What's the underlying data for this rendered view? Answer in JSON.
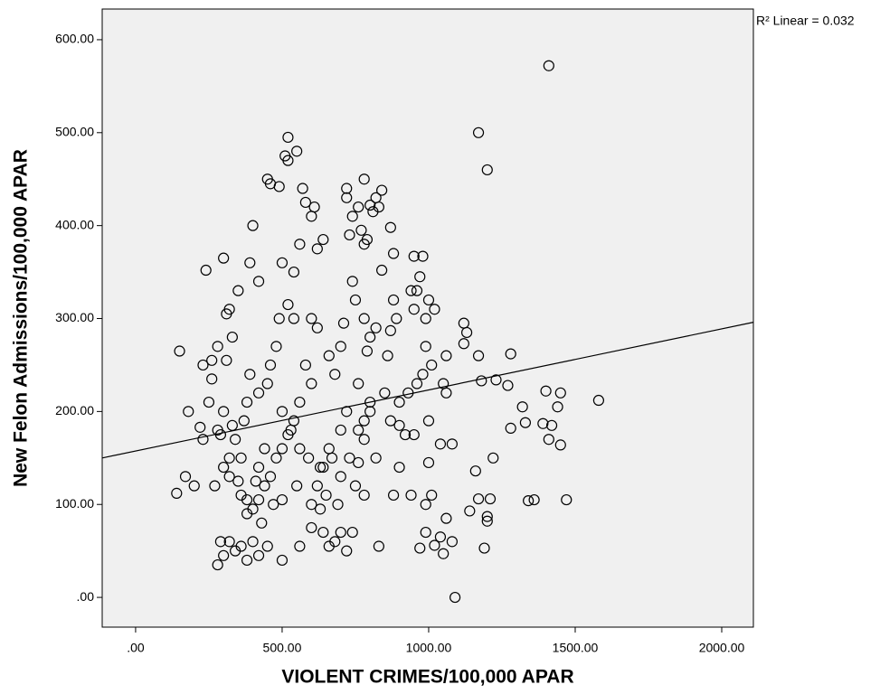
{
  "chart_data": {
    "type": "scatter",
    "y_label": "New Felon Admissions/100,000 APAR",
    "x_label": "VIOLENT CRIMES/100,000 APAR",
    "annotation": "R² Linear = 0.032",
    "xlim": [
      -114,
      2108
    ],
    "ylim": [
      -32,
      633
    ],
    "xticks": [
      {
        "value": 0,
        "label": ".00"
      },
      {
        "value": 500,
        "label": "500.00"
      },
      {
        "value": 1000,
        "label": "1000.00"
      },
      {
        "value": 1500,
        "label": "1500.00"
      },
      {
        "value": 2000,
        "label": "2000.00"
      }
    ],
    "yticks": [
      {
        "value": 0,
        "label": ".00"
      },
      {
        "value": 100,
        "label": "100.00"
      },
      {
        "value": 200,
        "label": "200.00"
      },
      {
        "value": 300,
        "label": "300.00"
      },
      {
        "value": 400,
        "label": "400.00"
      },
      {
        "value": 500,
        "label": "500.00"
      },
      {
        "value": 600,
        "label": "600.00"
      }
    ],
    "fit_line": {
      "x": [
        -114,
        2108
      ],
      "y": [
        150,
        296
      ]
    },
    "x": [
      1410,
      1170,
      1200,
      1580,
      1400,
      1450,
      1440,
      1420,
      1390,
      1410,
      1450,
      1470,
      1360,
      1340,
      1330,
      1320,
      1280,
      1270,
      1280,
      1230,
      1220,
      1210,
      1200,
      1190,
      1200,
      1160,
      1170,
      1140,
      1170,
      1180,
      1120,
      1130,
      1120,
      1080,
      1050,
      1060,
      1060,
      1040,
      1060,
      1050,
      1080,
      1020,
      1090,
      1000,
      990,
      990,
      980,
      950,
      970,
      960,
      940,
      950,
      1000,
      1020,
      1010,
      980,
      960,
      930,
      920,
      950,
      990,
      990,
      970,
      1000,
      900,
      890,
      880,
      870,
      860,
      870,
      880,
      840,
      830,
      820,
      810,
      800,
      790,
      780,
      770,
      780,
      760,
      740,
      720,
      720,
      730,
      840,
      820,
      800,
      790,
      780,
      750,
      740,
      710,
      700,
      760,
      780,
      800,
      780,
      760,
      750,
      780,
      740,
      720,
      700,
      680,
      660,
      640,
      630,
      620,
      640,
      660,
      700,
      720,
      680,
      660,
      620,
      600,
      580,
      600,
      560,
      540,
      520,
      500,
      480,
      460,
      440,
      420,
      400,
      380,
      360,
      350,
      320,
      300,
      290,
      280,
      300,
      320,
      340,
      360,
      380,
      400,
      420,
      450,
      500,
      560,
      600,
      540,
      520,
      500,
      540,
      560,
      570,
      580,
      600,
      610,
      620,
      640,
      520,
      520,
      510,
      550,
      450,
      460,
      490,
      400,
      420,
      390,
      350,
      310,
      320,
      300,
      240,
      310,
      330,
      280,
      260,
      260,
      230,
      250,
      220,
      230,
      200,
      170,
      180,
      140,
      150,
      280,
      290,
      320,
      340,
      370,
      380,
      390,
      420,
      450,
      460,
      480,
      490,
      500,
      530,
      560,
      590,
      630,
      670,
      700,
      730,
      760,
      800,
      850,
      900,
      900,
      880,
      940,
      870,
      830,
      820,
      1010,
      1040,
      420,
      430,
      410,
      380,
      470,
      440,
      500,
      550,
      600,
      650,
      690,
      360,
      330,
      300,
      270
    ],
    "values": [
      572,
      500,
      460,
      212,
      222,
      220,
      205,
      185,
      187,
      170,
      164,
      105,
      105,
      104,
      188,
      205,
      262,
      228,
      182,
      234,
      150,
      106,
      87,
      53,
      82,
      136,
      106,
      93,
      260,
      233,
      295,
      285,
      273,
      165,
      230,
      220,
      260,
      165,
      85,
      47,
      60,
      56,
      0,
      190,
      300,
      270,
      367,
      367,
      345,
      330,
      330,
      310,
      320,
      310,
      250,
      240,
      230,
      220,
      175,
      175,
      100,
      70,
      53,
      145,
      210,
      300,
      320,
      287,
      260,
      398,
      370,
      438,
      420,
      430,
      415,
      422,
      385,
      450,
      395,
      380,
      420,
      410,
      440,
      430,
      390,
      352,
      290,
      280,
      265,
      300,
      320,
      340,
      295,
      270,
      230,
      190,
      210,
      170,
      145,
      120,
      110,
      70,
      50,
      70,
      60,
      55,
      70,
      95,
      120,
      140,
      160,
      180,
      200,
      240,
      260,
      290,
      300,
      250,
      230,
      210,
      190,
      175,
      160,
      150,
      130,
      120,
      105,
      95,
      90,
      110,
      125,
      130,
      140,
      60,
      35,
      45,
      60,
      50,
      55,
      40,
      60,
      45,
      55,
      40,
      55,
      75,
      300,
      315,
      360,
      350,
      380,
      440,
      425,
      410,
      420,
      375,
      385,
      470,
      495,
      475,
      480,
      450,
      445,
      442,
      400,
      340,
      360,
      330,
      305,
      310,
      365,
      352,
      255,
      280,
      270,
      255,
      235,
      250,
      210,
      183,
      170,
      120,
      130,
      200,
      112,
      265,
      180,
      175,
      150,
      170,
      190,
      210,
      240,
      220,
      230,
      250,
      270,
      300,
      200,
      180,
      160,
      150,
      140,
      150,
      130,
      150,
      180,
      200,
      220,
      185,
      140,
      110,
      110,
      190,
      55,
      150,
      110,
      65,
      140,
      80,
      125,
      105,
      100,
      160,
      105,
      120,
      100,
      110,
      100,
      150,
      185,
      200,
      120
    ]
  }
}
